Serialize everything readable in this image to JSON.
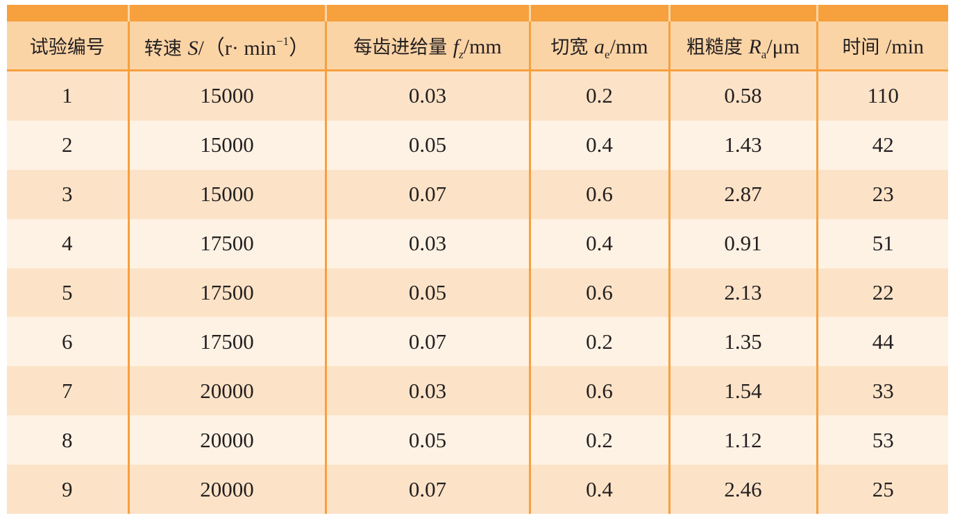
{
  "table": {
    "headers": [
      {
        "zh": "试验编号",
        "var": "",
        "sub": "",
        "sup": "",
        "unit": ""
      },
      {
        "zh": "转速 ",
        "var": "S",
        "sub": "",
        "sup": "−1",
        "unit_pre": "/（r· min",
        "unit": "）"
      },
      {
        "zh": "每齿进给量 ",
        "var": "f",
        "sub": "z",
        "sup": "",
        "unit": "/mm"
      },
      {
        "zh": "切宽 ",
        "var": "a",
        "sub": "e",
        "sup": "",
        "unit": "/mm"
      },
      {
        "zh": "粗糙度 ",
        "var": "R",
        "sub": "a",
        "sup": "",
        "unit": "/μm"
      },
      {
        "zh": "时间 ",
        "var": "",
        "sub": "",
        "sup": "",
        "unit": "/min"
      }
    ],
    "rows": [
      [
        "1",
        "15000",
        "0.03",
        "0.2",
        "0.58",
        "110"
      ],
      [
        "2",
        "15000",
        "0.05",
        "0.4",
        "1.43",
        "42"
      ],
      [
        "3",
        "15000",
        "0.07",
        "0.6",
        "2.87",
        "23"
      ],
      [
        "4",
        "17500",
        "0.03",
        "0.4",
        "0.91",
        "51"
      ],
      [
        "5",
        "17500",
        "0.05",
        "0.6",
        "2.13",
        "22"
      ],
      [
        "6",
        "17500",
        "0.07",
        "0.2",
        "1.35",
        "44"
      ],
      [
        "7",
        "20000",
        "0.03",
        "0.6",
        "1.54",
        "33"
      ],
      [
        "8",
        "20000",
        "0.05",
        "0.2",
        "1.12",
        "53"
      ],
      [
        "9",
        "20000",
        "0.07",
        "0.4",
        "2.46",
        "25"
      ]
    ]
  },
  "colors": {
    "header_band": "#f6a03e",
    "header_bg": "#fbd4a6",
    "row_odd": "#fce3c7",
    "row_even": "#fef2e4",
    "grid_line": "#f6a03e"
  }
}
